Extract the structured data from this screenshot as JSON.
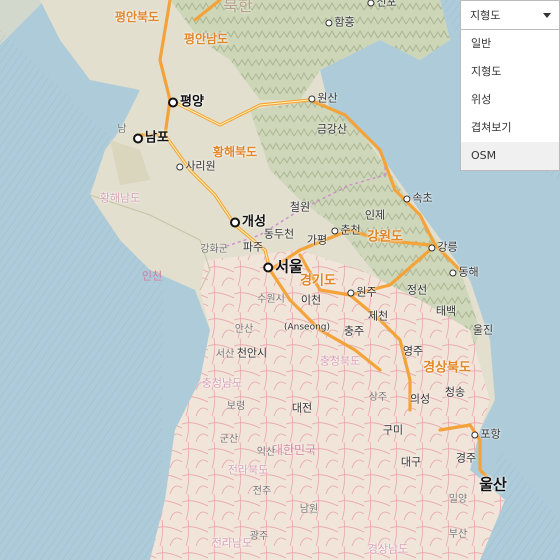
{
  "map": {
    "provinces": {
      "pyeongbuk": "평안북도",
      "pyeongnam": "평안남도",
      "hwanghae": "황해북도",
      "hwanghae_nam": "황해남도",
      "gangwon": "강원도",
      "gyeonggi": "경기도",
      "chungnam": "충청남도",
      "chungbuk": "충청북도",
      "jeonbuk": "전라북도",
      "gyeongbuk": "경상북도",
      "jeonnam": "전라남도",
      "gyeongnam": "경상남도"
    },
    "countries": {
      "north": "북한",
      "south": "대한민국"
    },
    "sea": {
      "west": "인천"
    },
    "cities": {
      "pyongyang": "평양",
      "nampo": "남포",
      "sariwon": "사리원",
      "kaesong": "개성",
      "seoul": "서울",
      "wonsan": "원산",
      "hamhung": "함흥",
      "sinpo": "신포",
      "chuncheon": "춘천",
      "gangneung": "강릉",
      "sokcho": "속초",
      "donghae": "동해",
      "wonju": "원주",
      "pohang": "포항",
      "ulsan": "울산",
      "gyeongju": "경주",
      "cheorwon": "철원",
      "inje": "인제",
      "gapyeong": "가평",
      "dongducheon": "동두천",
      "paju": "파주",
      "icheon": "이천",
      "chungju": "충주",
      "jecheon": "제천",
      "jeongseon": "정선",
      "taebaek": "태백",
      "uljin": "울진",
      "yeongju": "영주",
      "cheongsong": "청송",
      "uiseong": "의성",
      "gumi": "구미",
      "daegu": "대구",
      "daejeon": "대전",
      "anseong": "(Anseong)",
      "geumgangsan": "금강산",
      "cheonan": "천안시",
      "suwon": "수원시",
      "ansan": "안산",
      "ganghwa": "강화군",
      "seosan": "서산",
      "boryeong": "보령",
      "gunsan": "군산",
      "iksan": "익산",
      "jeonju": "전주",
      "namwon": "남원",
      "gwangju": "광주",
      "miryang": "밀양",
      "busan": "부산",
      "sangju": "상주",
      "nam": "남"
    }
  },
  "map_type": {
    "selected": "지형도",
    "options": [
      "일반",
      "지형도",
      "위성",
      "겹쳐보기",
      "OSM"
    ],
    "highlighted_index": 4
  }
}
